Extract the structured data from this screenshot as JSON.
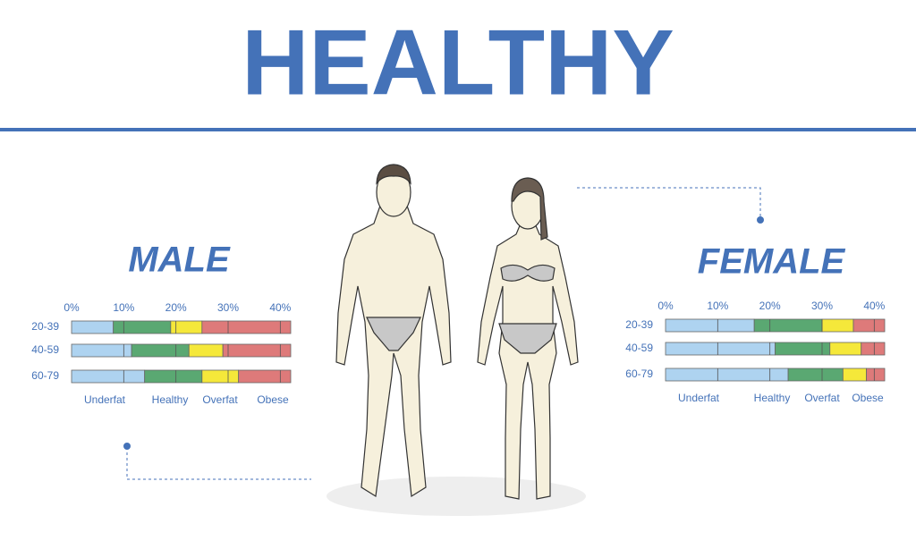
{
  "title": "HEALTHY",
  "chart_data": [
    {
      "type": "stacked-bar-horizontal",
      "title": "MALE",
      "categories": [
        "20-39",
        "40-59",
        "60-79"
      ],
      "xlim": [
        0,
        42
      ],
      "xticks": [
        {
          "value": 0,
          "label": "0%"
        },
        {
          "value": 10,
          "label": "10%"
        },
        {
          "value": 20,
          "label": "20%"
        },
        {
          "value": 30,
          "label": "30%"
        },
        {
          "value": 40,
          "label": "40%"
        }
      ],
      "series": [
        {
          "name": "Underfat",
          "color": "#aed3f0",
          "values": [
            8,
            11.5,
            14
          ]
        },
        {
          "name": "Healthy",
          "color": "#5aa872",
          "values": [
            11,
            11,
            11
          ]
        },
        {
          "name": "Overfat",
          "color": "#f5e83a",
          "values": [
            6,
            6.5,
            7
          ]
        },
        {
          "name": "Obese",
          "color": "#de7a7a",
          "values": [
            17,
            13,
            10
          ]
        }
      ]
    },
    {
      "type": "stacked-bar-horizontal",
      "title": "FEMALE",
      "categories": [
        "20-39",
        "40-59",
        "60-79"
      ],
      "xlim": [
        0,
        42
      ],
      "xticks": [
        {
          "value": 0,
          "label": "0%"
        },
        {
          "value": 10,
          "label": "10%"
        },
        {
          "value": 20,
          "label": "20%"
        },
        {
          "value": 30,
          "label": "30%"
        },
        {
          "value": 40,
          "label": "40%"
        }
      ],
      "series": [
        {
          "name": "Underfat",
          "color": "#aed3f0",
          "values": [
            17,
            21,
            23.5
          ]
        },
        {
          "name": "Healthy",
          "color": "#5aa872",
          "values": [
            13,
            10.5,
            10.5
          ]
        },
        {
          "name": "Overfat",
          "color": "#f5e83a",
          "values": [
            6,
            6,
            4.5
          ]
        },
        {
          "name": "Obese",
          "color": "#de7a7a",
          "values": [
            6,
            4.5,
            3.5
          ]
        }
      ]
    }
  ]
}
